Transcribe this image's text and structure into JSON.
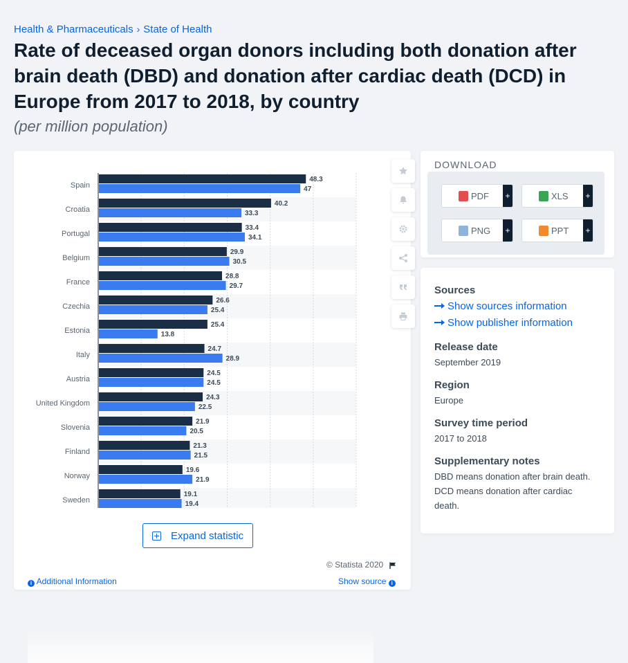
{
  "breadcrumb": {
    "items": [
      "Health & Pharmaceuticals",
      "State of Health"
    ],
    "separator": "›"
  },
  "page": {
    "title": "Rate of deceased organ donors including both donation after brain death (DBD) and donation after cardiac death (DCD) in Europe from 2017 to 2018, by country",
    "subtitle": "(per million population)"
  },
  "colors": {
    "series_2017": "#1a2e45",
    "series_2018": "#3a7cf0",
    "accent": "#0666e5"
  },
  "chart_data": {
    "type": "bar",
    "orientation": "horizontal",
    "categories": [
      "Spain",
      "Croatia",
      "Portugal",
      "Belgium",
      "France",
      "Czechia",
      "Estonia",
      "Italy",
      "Austria",
      "United Kingdom",
      "Slovenia",
      "Finland",
      "Norway",
      "Sweden"
    ],
    "series": [
      {
        "values": [
          48.3,
          40.2,
          33.4,
          29.9,
          28.8,
          26.6,
          25.4,
          24.7,
          24.5,
          24.3,
          21.9,
          21.3,
          19.6,
          19.1
        ]
      },
      {
        "values": [
          47,
          33.3,
          34.1,
          30.5,
          29.7,
          25.4,
          13.8,
          28.9,
          24.5,
          22.5,
          20.5,
          21.5,
          21.9,
          19.4
        ]
      }
    ],
    "xlim": [
      0,
      60
    ],
    "grid": true,
    "data_labels": true
  },
  "toolbar": {
    "icons": [
      "star-icon",
      "bell-icon",
      "gear-icon",
      "share-icon",
      "quote-icon",
      "print-icon"
    ]
  },
  "chart_footer": {
    "expand_label": "Expand statistic",
    "copyright": "© Statista 2020",
    "additional_info": "Additional Information",
    "show_source": "Show source"
  },
  "download": {
    "heading": "DOWNLOAD",
    "buttons": [
      {
        "label": "PDF",
        "color": "#e34d4d",
        "icon": "pdf-file-icon"
      },
      {
        "label": "XLS",
        "color": "#3aa655",
        "icon": "xls-file-icon"
      },
      {
        "label": "PNG",
        "color": "#8fb3d9",
        "icon": "png-file-icon"
      },
      {
        "label": "PPT",
        "color": "#f08a2c",
        "icon": "ppt-file-icon"
      }
    ],
    "plus": "+"
  },
  "meta": {
    "sources_heading": "Sources",
    "sources_link": "Show sources information",
    "publisher_link": "Show publisher information",
    "release_heading": "Release date",
    "release_value": "September 2019",
    "region_heading": "Region",
    "region_value": "Europe",
    "survey_heading": "Survey time period",
    "survey_value": "2017 to 2018",
    "notes_heading": "Supplementary notes",
    "notes_value": "DBD means donation after brain death. DCD means donation after cardiac death."
  }
}
